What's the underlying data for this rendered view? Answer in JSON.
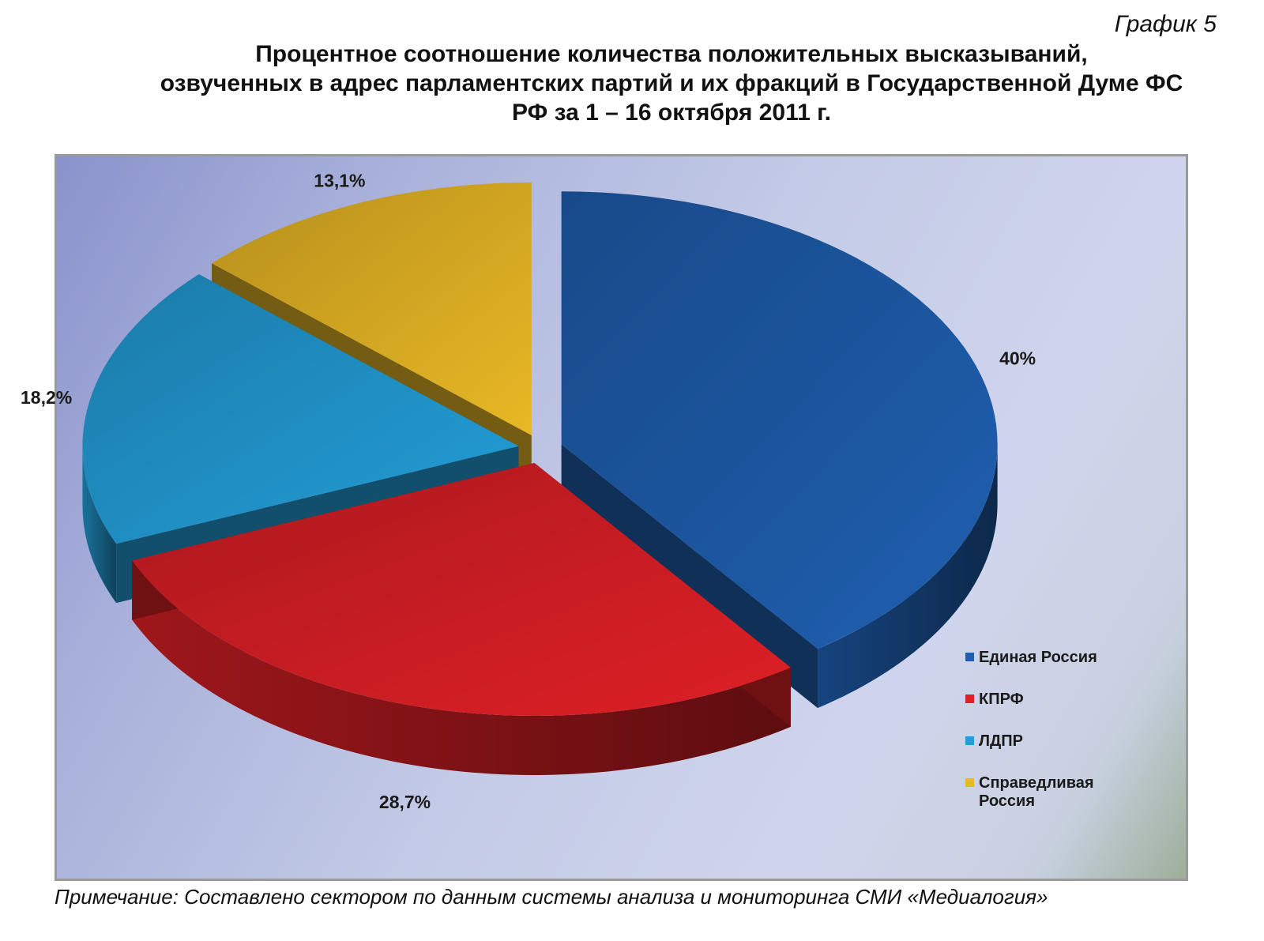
{
  "header": {
    "graph_number": "График 5",
    "title_lines": [
      "Процентное соотношение количества положительных высказываний,",
      "озвученных в адрес парламентских партий и их фракций в Государственной Думе ФС",
      "РФ за 1 – 16 октября 2011 г."
    ]
  },
  "chart_data": {
    "type": "pie",
    "style": "3d-exploded",
    "title": "Процентное соотношение количества положительных высказываний, озвученных в адрес парламентских партий и их фракций в Государственной Думе ФС РФ за 1 – 16 октября 2011 г.",
    "legend_position": "bottom-right",
    "slices": [
      {
        "name": "Единая Россия",
        "value": 40,
        "label": "40%",
        "color": "#1f5fb0"
      },
      {
        "name": "КПРФ",
        "value": 28.7,
        "label": "28,7%",
        "color": "#dd2026"
      },
      {
        "name": "ЛДПР",
        "value": 18.2,
        "label": "18,2%",
        "color": "#239ed8"
      },
      {
        "name": "Справедливая Россия",
        "value": 13.1,
        "label": "13,1%",
        "color": "#e9b825"
      }
    ],
    "legend": [
      {
        "lines": [
          "Единая Россия"
        ],
        "color": "#1f5fb0"
      },
      {
        "lines": [
          "КПРФ"
        ],
        "color": "#dd2026"
      },
      {
        "lines": [
          "ЛДПР"
        ],
        "color": "#239ed8"
      },
      {
        "lines": [
          "Справедливая",
          "Россия"
        ],
        "color": "#e9b825"
      }
    ]
  },
  "footnote": "Примечание: Составлено сектором по данным системы анализа и мониторинга СМИ «Медиалогия»"
}
